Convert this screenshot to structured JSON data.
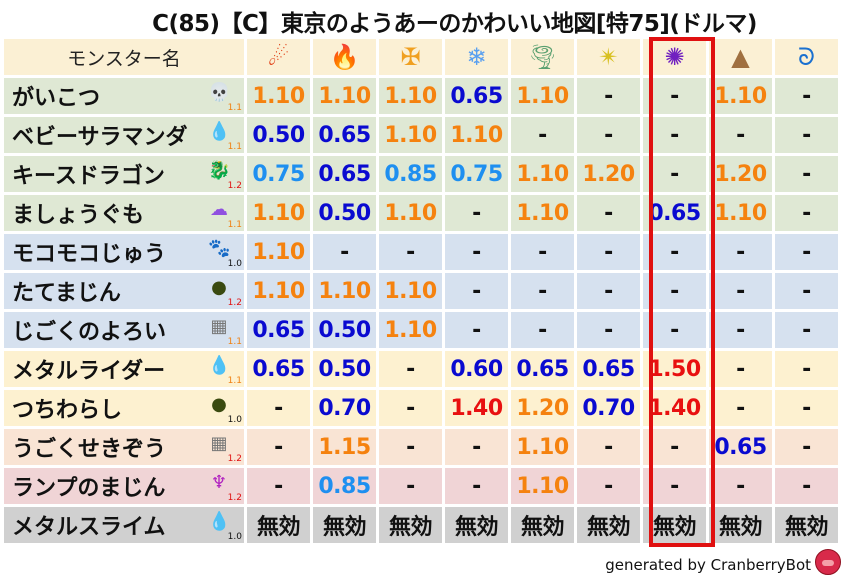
{
  "title": "C(85)【C】東京のようあーのかわいい地図[特75](ドルマ)",
  "header": {
    "name_col": "モンスター名",
    "elements": [
      {
        "icon": "meteor-fire-icon",
        "glyph": "☄",
        "color": "#e03a10"
      },
      {
        "icon": "flame-icon",
        "glyph": "🔥",
        "color": "#f05a10"
      },
      {
        "icon": "explosion-cross-icon",
        "glyph": "✠",
        "color": "#f0a020"
      },
      {
        "icon": "ice-flower-icon",
        "glyph": "❄",
        "color": "#5aa0f0"
      },
      {
        "icon": "tornado-icon",
        "glyph": "🌪",
        "color": "#5aa070"
      },
      {
        "icon": "light-star-icon",
        "glyph": "✴",
        "color": "#d8c020"
      },
      {
        "icon": "dark-vortex-icon",
        "glyph": "✺",
        "color": "#7020c0"
      },
      {
        "icon": "earth-rock-icon",
        "glyph": "▲",
        "color": "#a07040"
      },
      {
        "icon": "water-wave-icon",
        "glyph": "ᘐ",
        "color": "#1a70d0"
      }
    ]
  },
  "highlighted_column": 7,
  "value_colors": {
    "strong_resist": "#0a0ad0",
    "resist": "#1e8ff0",
    "weak": "#f5820f",
    "very_weak": "#e81010",
    "neutral": "#111111"
  },
  "rows": [
    {
      "name": "がいこつ",
      "icon": "skull-icon",
      "glyph": "💀",
      "icon_color": "#e890a0",
      "level": "1.1",
      "level_color": "#f08010",
      "bg": "#dfe8d4",
      "values": [
        "1.10",
        "1.10",
        "1.10",
        "0.65",
        "1.10",
        "-",
        "-",
        "1.10",
        "-"
      ]
    },
    {
      "name": "ベビーサラマンダ",
      "icon": "water-drop-icon",
      "glyph": "💧",
      "icon_color": "#3a9af0",
      "level": "1.1",
      "level_color": "#f08010",
      "bg": "#dfe8d4",
      "values": [
        "0.50",
        "0.65",
        "1.10",
        "1.10",
        "-",
        "-",
        "-",
        "-",
        "-"
      ]
    },
    {
      "name": "キースドラゴン",
      "icon": "dragon-icon",
      "glyph": "🐉",
      "icon_color": "#d02020",
      "level": "1.2",
      "level_color": "#e01010",
      "bg": "#dfe8d4",
      "values": [
        "0.75",
        "0.65",
        "0.85",
        "0.75",
        "1.10",
        "1.20",
        "-",
        "1.20",
        "-"
      ]
    },
    {
      "name": "ましょうぐも",
      "icon": "ghost-cloud-icon",
      "glyph": "☁",
      "icon_color": "#9050e0",
      "level": "1.1",
      "level_color": "#f08010",
      "bg": "#dfe8d4",
      "values": [
        "1.10",
        "0.50",
        "1.10",
        "-",
        "1.10",
        "-",
        "0.65",
        "1.10",
        "-"
      ]
    },
    {
      "name": "モコモコじゅう",
      "icon": "paw-icon",
      "glyph": "🐾",
      "icon_color": "#f0a020",
      "level": "1.0",
      "level_color": "#111111",
      "bg": "#d6e1ef",
      "values": [
        "1.10",
        "-",
        "-",
        "-",
        "-",
        "-",
        "-",
        "-",
        "-"
      ]
    },
    {
      "name": "たてまじん",
      "icon": "shadow-icon",
      "glyph": "●",
      "icon_color": "#3a4a10",
      "level": "1.2",
      "level_color": "#e01010",
      "bg": "#d6e1ef",
      "values": [
        "1.10",
        "1.10",
        "1.10",
        "-",
        "-",
        "-",
        "-",
        "-",
        "-"
      ]
    },
    {
      "name": "じごくのよろい",
      "icon": "brick-wall-icon",
      "glyph": "▦",
      "icon_color": "#777777",
      "level": "1.1",
      "level_color": "#f08010",
      "bg": "#d6e1ef",
      "values": [
        "0.65",
        "0.50",
        "1.10",
        "-",
        "-",
        "-",
        "-",
        "-",
        "-"
      ]
    },
    {
      "name": "メタルライダー",
      "icon": "slime-icon",
      "glyph": "💧",
      "icon_color": "#3a9af0",
      "level": "1.1",
      "level_color": "#f08010",
      "bg": "#fdf1d0",
      "values": [
        "0.65",
        "0.50",
        "-",
        "0.60",
        "0.65",
        "0.65",
        "1.50",
        "-",
        "-"
      ]
    },
    {
      "name": "つちわらし",
      "icon": "shadow-icon",
      "glyph": "●",
      "icon_color": "#3a4a10",
      "level": "1.0",
      "level_color": "#111111",
      "bg": "#fdf1d0",
      "values": [
        "-",
        "0.70",
        "-",
        "1.40",
        "1.20",
        "0.70",
        "1.40",
        "-",
        "-"
      ]
    },
    {
      "name": "うごくせきぞう",
      "icon": "brick-wall-icon",
      "glyph": "▦",
      "icon_color": "#777777",
      "level": "1.2",
      "level_color": "#e01010",
      "bg": "#f9e4d4",
      "values": [
        "-",
        "1.15",
        "-",
        "-",
        "1.10",
        "-",
        "-",
        "0.65",
        "-"
      ]
    },
    {
      "name": "ランプのまじん",
      "icon": "trident-icon",
      "glyph": "♆",
      "icon_color": "#b020c0",
      "level": "1.2",
      "level_color": "#e01010",
      "bg": "#f0d4d6",
      "values": [
        "-",
        "0.85",
        "-",
        "-",
        "1.10",
        "-",
        "-",
        "-",
        "-"
      ]
    },
    {
      "name": "メタルスライム",
      "icon": "slime-icon",
      "glyph": "💧",
      "icon_color": "#3a9af0",
      "level": "1.0",
      "level_color": "#111111",
      "bg": "#d0d0d0",
      "values": [
        "無効",
        "無効",
        "無効",
        "無効",
        "無効",
        "無効",
        "無効",
        "無効",
        "無効"
      ]
    }
  ],
  "footer": {
    "text": "generated by CranberryBot",
    "logo_icon": "cranberry-logo-icon"
  }
}
